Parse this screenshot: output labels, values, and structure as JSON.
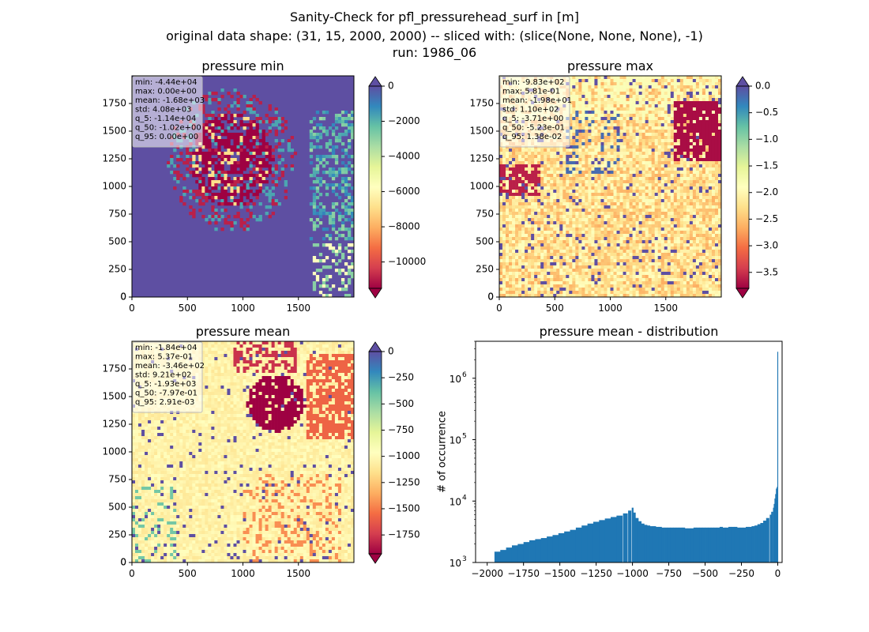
{
  "figure": {
    "title_line1": "Sanity-Check for pfl_pressurehead_surf in [m]",
    "title_line2": "original data shape: (31, 15, 2000, 2000) -- sliced with: (slice(None, None, None), -1)",
    "title_line3": "run: 1986_06"
  },
  "chart_data": [
    {
      "type": "heatmap",
      "title": "pressure min",
      "colormap": "Spectral",
      "colormap_note": "extended colorbar (arrows at both ends)",
      "xlim": [
        0,
        2000
      ],
      "ylim": [
        0,
        2000
      ],
      "xticks": [
        0,
        500,
        1000,
        1500
      ],
      "yticks": [
        0,
        250,
        500,
        750,
        1000,
        1250,
        1500,
        1750
      ],
      "colorbar": {
        "vmin": -11500,
        "vmax": 0,
        "ticks": [
          0,
          -2000,
          -4000,
          -6000,
          -8000,
          -10000
        ]
      },
      "stats": [
        "min: -4.44e+04",
        "max: 0.00e+00",
        "mean: -1.68e+03",
        "std: 4.08e+03",
        "q_5: -1.14e+04",
        "q_50: -1.02e+00",
        "q_95: 0.00e+00"
      ],
      "background_color": "#5e4fa2"
    },
    {
      "type": "heatmap",
      "title": "pressure max",
      "colormap": "Spectral",
      "xlim": [
        0,
        2000
      ],
      "ylim": [
        0,
        2000
      ],
      "xticks": [
        0,
        500,
        1000,
        1500
      ],
      "yticks": [
        0,
        250,
        500,
        750,
        1000,
        1250,
        1500,
        1750
      ],
      "colorbar": {
        "vmin": -3.8,
        "vmax": 0.0,
        "ticks": [
          "0.0",
          "-0.5",
          "-1.0",
          "-1.5",
          "-2.0",
          "-2.5",
          "-3.0",
          "-3.5"
        ]
      },
      "stats": [
        "min: -9.83e+02",
        "max: 5.81e-01",
        "mean: -1.98e+01",
        "std: 1.10e+02",
        "q_5: -3.71e+00",
        "q_50: -5.23e-01",
        "q_95: 1.38e-02"
      ],
      "background_color": "#fdd083"
    },
    {
      "type": "heatmap",
      "title": "pressure mean",
      "colormap": "Spectral",
      "xlim": [
        0,
        2000
      ],
      "ylim": [
        0,
        2000
      ],
      "xticks": [
        0,
        500,
        1000,
        1500
      ],
      "yticks": [
        0,
        250,
        500,
        750,
        1000,
        1250,
        1500,
        1750
      ],
      "colorbar": {
        "vmin": -1930,
        "vmax": 0,
        "ticks": [
          0,
          -250,
          -500,
          -750,
          -1000,
          -1250,
          -1500,
          -1750
        ]
      },
      "stats": [
        "min: -1.84e+04",
        "max: 5.37e-01",
        "mean: -3.46e+02",
        "std: 9.21e+02",
        "q_5: -1.93e+03",
        "q_50: -7.97e-01",
        "q_95: 2.91e-03"
      ],
      "background_color": "#fdf5ad"
    },
    {
      "type": "bar",
      "title": "pressure mean - distribution",
      "ylabel": "# of occurrence",
      "yscale": "log",
      "ylim": [
        1000,
        4000000
      ],
      "xlim": [
        -2080,
        30
      ],
      "xticks": [
        -2000,
        -1750,
        -1500,
        -1250,
        -1000,
        -750,
        -500,
        -250,
        0
      ],
      "xtick_labels": [
        "−2000",
        "−1750",
        "−1500",
        "−1250",
        "−1000",
        "−750",
        "−500",
        "−250",
        "0"
      ],
      "yticks": [
        1000,
        10000,
        100000,
        1000000
      ],
      "ytick_labels": [
        "10",
        "10",
        "10",
        "10"
      ],
      "ytick_exponents": [
        "3",
        "4",
        "5",
        "6"
      ],
      "bar_color": "#1f77b4",
      "bin_centers": [
        -1930,
        -1890,
        -1850,
        -1810,
        -1770,
        -1730,
        -1690,
        -1650,
        -1610,
        -1570,
        -1530,
        -1490,
        -1450,
        -1410,
        -1370,
        -1330,
        -1290,
        -1250,
        -1210,
        -1170,
        -1130,
        -1090,
        -1050,
        -1020,
        -1000,
        -990,
        -970,
        -950,
        -930,
        -910,
        -890,
        -870,
        -850,
        -830,
        -810,
        -790,
        -770,
        -750,
        -730,
        -710,
        -690,
        -670,
        -650,
        -630,
        -610,
        -590,
        -570,
        -550,
        -530,
        -510,
        -490,
        -470,
        -450,
        -430,
        -410,
        -390,
        -370,
        -350,
        -330,
        -310,
        -290,
        -270,
        -250,
        -230,
        -210,
        -190,
        -170,
        -150,
        -130,
        -110,
        -90,
        -70,
        -50,
        -40,
        -30,
        -25,
        -20,
        -15,
        -10,
        -5,
        -1
      ],
      "values": [
        1500,
        1600,
        1750,
        1900,
        2000,
        2150,
        2300,
        2400,
        2500,
        2650,
        2800,
        3000,
        3200,
        3400,
        3700,
        4000,
        4300,
        4600,
        4900,
        5200,
        5500,
        5800,
        6300,
        7000,
        7800,
        6500,
        5300,
        4700,
        4300,
        4100,
        4000,
        3900,
        3900,
        3800,
        3800,
        3700,
        3700,
        3700,
        3700,
        3700,
        3700,
        3700,
        3700,
        3600,
        3600,
        3600,
        3700,
        3700,
        3700,
        3700,
        3700,
        3700,
        3700,
        3700,
        3700,
        3800,
        3700,
        3700,
        3800,
        3800,
        3800,
        3700,
        3700,
        3700,
        3800,
        3800,
        3900,
        4000,
        4200,
        4400,
        4800,
        5300,
        6000,
        6700,
        7800,
        9000,
        11000,
        13000,
        16000,
        17000,
        2700000
      ],
      "bin_width": 40
    }
  ]
}
